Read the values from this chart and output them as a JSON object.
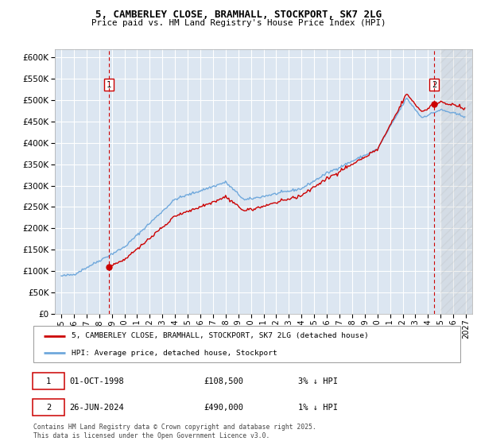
{
  "title_line1": "5, CAMBERLEY CLOSE, BRAMHALL, STOCKPORT, SK7 2LG",
  "title_line2": "Price paid vs. HM Land Registry's House Price Index (HPI)",
  "ylim": [
    0,
    620000
  ],
  "yticks": [
    0,
    50000,
    100000,
    150000,
    200000,
    250000,
    300000,
    350000,
    400000,
    450000,
    500000,
    550000,
    600000
  ],
  "ytick_labels": [
    "£0",
    "£50K",
    "£100K",
    "£150K",
    "£200K",
    "£250K",
    "£300K",
    "£350K",
    "£400K",
    "£450K",
    "£500K",
    "£550K",
    "£600K"
  ],
  "xlim_start": 1994.5,
  "xlim_end": 2027.5,
  "xtick_years": [
    1995,
    1996,
    1997,
    1998,
    1999,
    2000,
    2001,
    2002,
    2003,
    2004,
    2005,
    2006,
    2007,
    2008,
    2009,
    2010,
    2011,
    2012,
    2013,
    2014,
    2015,
    2016,
    2017,
    2018,
    2019,
    2020,
    2021,
    2022,
    2023,
    2024,
    2025,
    2026,
    2027
  ],
  "sale1_x": 1998.75,
  "sale1_y": 108500,
  "sale1_label": "1",
  "sale2_x": 2024.49,
  "sale2_y": 490000,
  "sale2_label": "2",
  "hpi_color": "#6fa8dc",
  "price_color": "#cc0000",
  "plot_bg": "#dce6f1",
  "grid_color": "#ffffff",
  "legend_line1": "5, CAMBERLEY CLOSE, BRAMHALL, STOCKPORT, SK7 2LG (detached house)",
  "legend_line2": "HPI: Average price, detached house, Stockport",
  "annotation1_date": "01-OCT-1998",
  "annotation1_price": "£108,500",
  "annotation1_hpi": "3% ↓ HPI",
  "annotation2_date": "26-JUN-2024",
  "annotation2_price": "£490,000",
  "annotation2_hpi": "1% ↓ HPI",
  "footnote": "Contains HM Land Registry data © Crown copyright and database right 2025.\nThis data is licensed under the Open Government Licence v3.0.",
  "label_box_color": "#cc0000",
  "hatch_start": 2025.0
}
